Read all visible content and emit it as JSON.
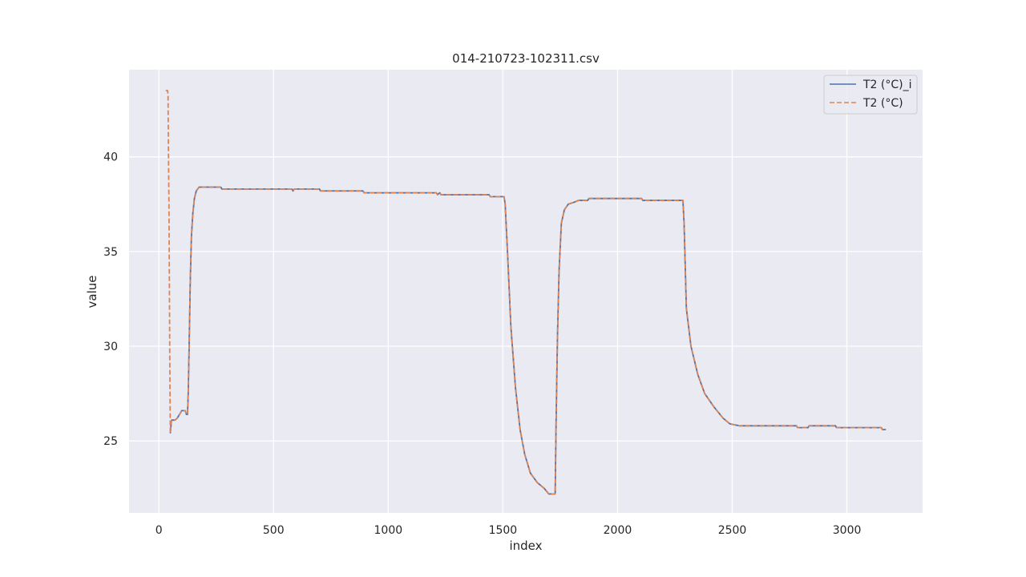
{
  "chart_data": {
    "type": "line",
    "title": "014-210723-102311.csv",
    "xlabel": "index",
    "ylabel": "value",
    "xlim": [
      -130,
      3330
    ],
    "ylim": [
      21.2,
      44.6
    ],
    "xticks": [
      0,
      500,
      1000,
      1500,
      2000,
      2500,
      3000
    ],
    "yticks": [
      25,
      30,
      35,
      40
    ],
    "grid": true,
    "legend_position": "top-right",
    "background": "#eaeaf2",
    "series": [
      {
        "name": "T2 (°C)_i",
        "color": "#4c72b0",
        "dash": "solid",
        "points": [
          [
            50,
            25.4
          ],
          [
            55,
            26.1
          ],
          [
            70,
            26.1
          ],
          [
            80,
            26.2
          ],
          [
            90,
            26.4
          ],
          [
            100,
            26.6
          ],
          [
            115,
            26.6
          ],
          [
            120,
            26.4
          ],
          [
            125,
            26.4
          ],
          [
            128,
            27.5
          ],
          [
            132,
            30.0
          ],
          [
            137,
            33.5
          ],
          [
            142,
            35.8
          ],
          [
            148,
            37.0
          ],
          [
            155,
            37.8
          ],
          [
            163,
            38.2
          ],
          [
            175,
            38.4
          ],
          [
            270,
            38.4
          ],
          [
            275,
            38.3
          ],
          [
            580,
            38.3
          ],
          [
            585,
            38.2
          ],
          [
            590,
            38.3
          ],
          [
            700,
            38.3
          ],
          [
            705,
            38.2
          ],
          [
            890,
            38.2
          ],
          [
            895,
            38.1
          ],
          [
            1210,
            38.1
          ],
          [
            1215,
            38.0
          ],
          [
            1225,
            38.1
          ],
          [
            1230,
            38.0
          ],
          [
            1440,
            38.0
          ],
          [
            1445,
            37.9
          ],
          [
            1505,
            37.9
          ],
          [
            1510,
            37.5
          ],
          [
            1520,
            35.0
          ],
          [
            1535,
            31.0
          ],
          [
            1555,
            27.8
          ],
          [
            1575,
            25.6
          ],
          [
            1595,
            24.3
          ],
          [
            1620,
            23.3
          ],
          [
            1650,
            22.8
          ],
          [
            1680,
            22.5
          ],
          [
            1700,
            22.2
          ],
          [
            1728,
            22.2
          ],
          [
            1732,
            26.0
          ],
          [
            1738,
            30.5
          ],
          [
            1745,
            34.0
          ],
          [
            1755,
            36.5
          ],
          [
            1768,
            37.2
          ],
          [
            1785,
            37.5
          ],
          [
            1810,
            37.6
          ],
          [
            1830,
            37.7
          ],
          [
            1870,
            37.7
          ],
          [
            1875,
            37.8
          ],
          [
            2105,
            37.8
          ],
          [
            2110,
            37.7
          ],
          [
            2285,
            37.7
          ],
          [
            2290,
            36.5
          ],
          [
            2300,
            32.0
          ],
          [
            2320,
            30.0
          ],
          [
            2350,
            28.5
          ],
          [
            2380,
            27.5
          ],
          [
            2420,
            26.8
          ],
          [
            2460,
            26.2
          ],
          [
            2490,
            25.9
          ],
          [
            2530,
            25.8
          ],
          [
            2780,
            25.8
          ],
          [
            2785,
            25.7
          ],
          [
            2830,
            25.7
          ],
          [
            2835,
            25.8
          ],
          [
            2950,
            25.8
          ],
          [
            2955,
            25.7
          ],
          [
            3150,
            25.7
          ],
          [
            3155,
            25.6
          ],
          [
            3170,
            25.6
          ]
        ]
      },
      {
        "name": "T2 (°C)",
        "color": "#dd8452",
        "dash": "dashed",
        "points": [
          [
            30,
            43.5
          ],
          [
            38,
            43.5
          ],
          [
            40,
            43.3
          ],
          [
            42,
            40.0
          ],
          [
            44,
            37.5
          ],
          [
            46,
            33.0
          ],
          [
            48,
            28.5
          ],
          [
            50,
            25.4
          ],
          [
            55,
            26.1
          ],
          [
            70,
            26.1
          ],
          [
            80,
            26.2
          ],
          [
            90,
            26.4
          ],
          [
            100,
            26.6
          ],
          [
            115,
            26.6
          ],
          [
            120,
            26.4
          ],
          [
            125,
            26.4
          ],
          [
            128,
            27.5
          ],
          [
            132,
            30.0
          ],
          [
            137,
            33.5
          ],
          [
            142,
            35.8
          ],
          [
            148,
            37.0
          ],
          [
            155,
            37.8
          ],
          [
            163,
            38.2
          ],
          [
            175,
            38.4
          ],
          [
            270,
            38.4
          ],
          [
            275,
            38.3
          ],
          [
            580,
            38.3
          ],
          [
            585,
            38.2
          ],
          [
            590,
            38.3
          ],
          [
            700,
            38.3
          ],
          [
            705,
            38.2
          ],
          [
            890,
            38.2
          ],
          [
            895,
            38.1
          ],
          [
            1210,
            38.1
          ],
          [
            1215,
            38.0
          ],
          [
            1225,
            38.1
          ],
          [
            1230,
            38.0
          ],
          [
            1440,
            38.0
          ],
          [
            1445,
            37.9
          ],
          [
            1505,
            37.9
          ],
          [
            1510,
            37.5
          ],
          [
            1520,
            35.0
          ],
          [
            1535,
            31.0
          ],
          [
            1555,
            27.8
          ],
          [
            1575,
            25.6
          ],
          [
            1595,
            24.3
          ],
          [
            1620,
            23.3
          ],
          [
            1650,
            22.8
          ],
          [
            1680,
            22.5
          ],
          [
            1700,
            22.2
          ],
          [
            1728,
            22.2
          ],
          [
            1732,
            26.0
          ],
          [
            1738,
            30.5
          ],
          [
            1745,
            34.0
          ],
          [
            1755,
            36.5
          ],
          [
            1768,
            37.2
          ],
          [
            1785,
            37.5
          ],
          [
            1810,
            37.6
          ],
          [
            1830,
            37.7
          ],
          [
            1870,
            37.7
          ],
          [
            1875,
            37.8
          ],
          [
            2105,
            37.8
          ],
          [
            2110,
            37.7
          ],
          [
            2285,
            37.7
          ],
          [
            2290,
            36.5
          ],
          [
            2300,
            32.0
          ],
          [
            2320,
            30.0
          ],
          [
            2350,
            28.5
          ],
          [
            2380,
            27.5
          ],
          [
            2420,
            26.8
          ],
          [
            2460,
            26.2
          ],
          [
            2490,
            25.9
          ],
          [
            2530,
            25.8
          ],
          [
            2780,
            25.8
          ],
          [
            2785,
            25.7
          ],
          [
            2830,
            25.7
          ],
          [
            2835,
            25.8
          ],
          [
            2950,
            25.8
          ],
          [
            2955,
            25.7
          ],
          [
            3150,
            25.7
          ],
          [
            3155,
            25.6
          ],
          [
            3170,
            25.6
          ]
        ]
      }
    ]
  }
}
